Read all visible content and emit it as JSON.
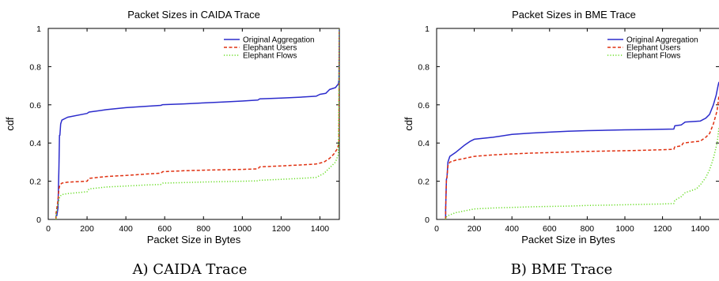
{
  "captions": [
    "A) CAIDA Trace",
    "B) BME Trace"
  ],
  "chart_data": [
    {
      "type": "line",
      "title": "Packet Sizes in CAIDA Trace",
      "xlabel": "Packet Size in Bytes",
      "ylabel": "cdf",
      "xlim": [
        0,
        1500
      ],
      "ylim": [
        0,
        1
      ],
      "xticks": [
        0,
        200,
        400,
        600,
        800,
        1000,
        1200,
        1400
      ],
      "yticks": [
        0,
        0.2,
        0.4,
        0.6,
        0.8,
        1
      ],
      "grid": false,
      "legend_position": "top-right",
      "series": [
        {
          "name": "Original Aggregation",
          "color": "#2b2bcc",
          "style": "solid",
          "points": [
            [
              40,
              0
            ],
            [
              40,
              0.02
            ],
            [
              44,
              0.02
            ],
            [
              50,
              0.06
            ],
            [
              52,
              0.15
            ],
            [
              55,
              0.27
            ],
            [
              58,
              0.44
            ],
            [
              60,
              0.44
            ],
            [
              64,
              0.5
            ],
            [
              70,
              0.52
            ],
            [
              100,
              0.535
            ],
            [
              200,
              0.555
            ],
            [
              210,
              0.562
            ],
            [
              300,
              0.575
            ],
            [
              400,
              0.585
            ],
            [
              500,
              0.592
            ],
            [
              580,
              0.597
            ],
            [
              590,
              0.601
            ],
            [
              700,
              0.605
            ],
            [
              800,
              0.61
            ],
            [
              900,
              0.615
            ],
            [
              1000,
              0.62
            ],
            [
              1080,
              0.625
            ],
            [
              1090,
              0.631
            ],
            [
              1200,
              0.635
            ],
            [
              1300,
              0.64
            ],
            [
              1380,
              0.645
            ],
            [
              1400,
              0.655
            ],
            [
              1430,
              0.66
            ],
            [
              1450,
              0.68
            ],
            [
              1480,
              0.69
            ],
            [
              1495,
              0.71
            ],
            [
              1498,
              0.73
            ],
            [
              1500,
              1.0
            ]
          ]
        },
        {
          "name": "Elephant Users",
          "color": "#e03010",
          "style": "dashed",
          "points": [
            [
              40,
              0
            ],
            [
              40,
              0.03
            ],
            [
              50,
              0.1
            ],
            [
              55,
              0.16
            ],
            [
              60,
              0.18
            ],
            [
              70,
              0.19
            ],
            [
              100,
              0.195
            ],
            [
              200,
              0.2
            ],
            [
              210,
              0.215
            ],
            [
              300,
              0.225
            ],
            [
              400,
              0.23
            ],
            [
              500,
              0.237
            ],
            [
              580,
              0.242
            ],
            [
              590,
              0.25
            ],
            [
              700,
              0.255
            ],
            [
              800,
              0.258
            ],
            [
              900,
              0.26
            ],
            [
              1000,
              0.262
            ],
            [
              1080,
              0.265
            ],
            [
              1090,
              0.275
            ],
            [
              1200,
              0.28
            ],
            [
              1300,
              0.285
            ],
            [
              1380,
              0.29
            ],
            [
              1420,
              0.3
            ],
            [
              1450,
              0.32
            ],
            [
              1470,
              0.34
            ],
            [
              1490,
              0.37
            ],
            [
              1498,
              0.4
            ],
            [
              1500,
              1.0
            ]
          ]
        },
        {
          "name": "Elephant Flows",
          "color": "#66dd22",
          "style": "dotted",
          "points": [
            [
              40,
              0
            ],
            [
              40,
              0.02
            ],
            [
              50,
              0.08
            ],
            [
              55,
              0.1
            ],
            [
              60,
              0.12
            ],
            [
              70,
              0.13
            ],
            [
              100,
              0.135
            ],
            [
              200,
              0.145
            ],
            [
              210,
              0.16
            ],
            [
              300,
              0.17
            ],
            [
              400,
              0.175
            ],
            [
              500,
              0.18
            ],
            [
              580,
              0.183
            ],
            [
              590,
              0.19
            ],
            [
              700,
              0.193
            ],
            [
              800,
              0.196
            ],
            [
              900,
              0.198
            ],
            [
              1000,
              0.2
            ],
            [
              1080,
              0.202
            ],
            [
              1090,
              0.205
            ],
            [
              1200,
              0.21
            ],
            [
              1300,
              0.215
            ],
            [
              1380,
              0.22
            ],
            [
              1420,
              0.24
            ],
            [
              1450,
              0.27
            ],
            [
              1480,
              0.3
            ],
            [
              1495,
              0.34
            ],
            [
              1500,
              1.0
            ]
          ]
        }
      ]
    },
    {
      "type": "line",
      "title": "Packet Sizes in BME Trace",
      "xlabel": "Packet Size in Bytes",
      "ylabel": "cdf",
      "xlim": [
        0,
        1500
      ],
      "ylim": [
        0,
        1
      ],
      "xticks": [
        0,
        200,
        400,
        600,
        800,
        1000,
        1200,
        1400
      ],
      "yticks": [
        0,
        0.2,
        0.4,
        0.6,
        0.8,
        1
      ],
      "grid": false,
      "legend_position": "top-right",
      "series": [
        {
          "name": "Original Aggregation",
          "color": "#2b2bcc",
          "style": "solid",
          "points": [
            [
              48,
              0
            ],
            [
              48,
              0.05
            ],
            [
              52,
              0.21
            ],
            [
              55,
              0.22
            ],
            [
              60,
              0.3
            ],
            [
              70,
              0.33
            ],
            [
              100,
              0.35
            ],
            [
              150,
              0.39
            ],
            [
              180,
              0.41
            ],
            [
              200,
              0.42
            ],
            [
              300,
              0.43
            ],
            [
              400,
              0.445
            ],
            [
              500,
              0.452
            ],
            [
              600,
              0.457
            ],
            [
              700,
              0.462
            ],
            [
              800,
              0.465
            ],
            [
              900,
              0.467
            ],
            [
              1000,
              0.469
            ],
            [
              1100,
              0.47
            ],
            [
              1200,
              0.472
            ],
            [
              1260,
              0.473
            ],
            [
              1265,
              0.49
            ],
            [
              1300,
              0.495
            ],
            [
              1320,
              0.51
            ],
            [
              1400,
              0.515
            ],
            [
              1430,
              0.53
            ],
            [
              1450,
              0.55
            ],
            [
              1470,
              0.6
            ],
            [
              1485,
              0.65
            ],
            [
              1495,
              0.7
            ],
            [
              1500,
              0.72
            ]
          ]
        },
        {
          "name": "Elephant Users",
          "color": "#e03010",
          "style": "dashed",
          "points": [
            [
              48,
              0
            ],
            [
              48,
              0.05
            ],
            [
              52,
              0.21
            ],
            [
              55,
              0.22
            ],
            [
              60,
              0.28
            ],
            [
              70,
              0.3
            ],
            [
              100,
              0.31
            ],
            [
              150,
              0.32
            ],
            [
              200,
              0.33
            ],
            [
              300,
              0.338
            ],
            [
              400,
              0.343
            ],
            [
              500,
              0.347
            ],
            [
              600,
              0.35
            ],
            [
              700,
              0.353
            ],
            [
              800,
              0.356
            ],
            [
              900,
              0.358
            ],
            [
              1000,
              0.36
            ],
            [
              1100,
              0.362
            ],
            [
              1200,
              0.365
            ],
            [
              1260,
              0.367
            ],
            [
              1265,
              0.38
            ],
            [
              1300,
              0.385
            ],
            [
              1310,
              0.4
            ],
            [
              1400,
              0.41
            ],
            [
              1430,
              0.43
            ],
            [
              1450,
              0.45
            ],
            [
              1470,
              0.5
            ],
            [
              1490,
              0.57
            ],
            [
              1500,
              0.65
            ]
          ]
        },
        {
          "name": "Elephant Flows",
          "color": "#66dd22",
          "style": "dotted",
          "points": [
            [
              48,
              0
            ],
            [
              48,
              0.01
            ],
            [
              60,
              0.02
            ],
            [
              100,
              0.035
            ],
            [
              150,
              0.045
            ],
            [
              200,
              0.055
            ],
            [
              300,
              0.06
            ],
            [
              400,
              0.063
            ],
            [
              500,
              0.066
            ],
            [
              600,
              0.068
            ],
            [
              700,
              0.07
            ],
            [
              800,
              0.073
            ],
            [
              900,
              0.075
            ],
            [
              1000,
              0.077
            ],
            [
              1100,
              0.079
            ],
            [
              1200,
              0.081
            ],
            [
              1260,
              0.083
            ],
            [
              1265,
              0.1
            ],
            [
              1300,
              0.12
            ],
            [
              1320,
              0.14
            ],
            [
              1380,
              0.16
            ],
            [
              1400,
              0.18
            ],
            [
              1430,
              0.22
            ],
            [
              1450,
              0.26
            ],
            [
              1470,
              0.32
            ],
            [
              1490,
              0.4
            ],
            [
              1500,
              0.48
            ]
          ]
        }
      ]
    }
  ]
}
